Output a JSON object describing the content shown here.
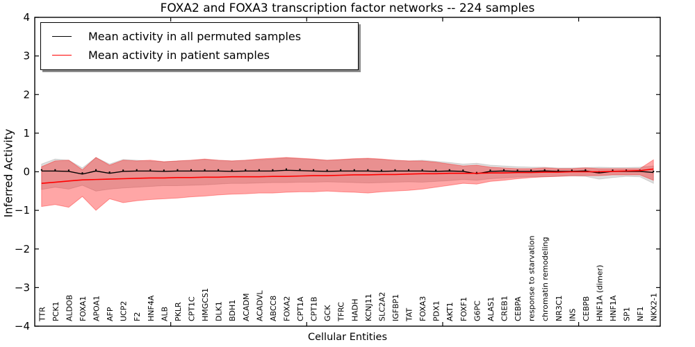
{
  "figure": {
    "title": "FOXA2 and FOXA3 transcription factor networks -- 224 samples",
    "xlabel": "Cellular Entities",
    "ylabel": "Inferred Activity",
    "legend": {
      "entries": [
        {
          "label": "Mean activity in all permuted samples",
          "color": "#000000"
        },
        {
          "label": "Mean activity in patient samples",
          "color": "#ff0000"
        }
      ]
    }
  },
  "chart_data": {
    "type": "line",
    "title": "FOXA2 and FOXA3 transcription factor networks -- 224 samples",
    "xlabel": "Cellular Entities",
    "ylabel": "Inferred Activity",
    "ylim": [
      -4,
      4
    ],
    "yticks": [
      -4,
      -3,
      -2,
      -1,
      0,
      1,
      2,
      3,
      4
    ],
    "xticks_major_positions": [
      10,
      20,
      30,
      40
    ],
    "grid": false,
    "legend_position": "upper left",
    "categories": [
      "TTR",
      "PCK1",
      "ALDOB",
      "FOXA1",
      "APOA1",
      "AFP",
      "UCP2",
      "F2",
      "HNF4A",
      "ALB",
      "PKLR",
      "CPT1C",
      "HMGCS1",
      "DLK1",
      "BDH1",
      "ACADM",
      "ACADVL",
      "ABCC8",
      "FOXA2",
      "CPT1A",
      "CPT1B",
      "GCK",
      "TFRC",
      "HADH",
      "KCNJ11",
      "SLC2A2",
      "IGFBP1",
      "TAT",
      "FOXA3",
      "PDX1",
      "AKT1",
      "FOXF1",
      "G6PC",
      "ALAS1",
      "CREB1",
      "CEBPA",
      "response to starvation",
      "chromatin remodeling",
      "NR3C1",
      "INS",
      "CEBPB",
      "HNF1A (dimer)",
      "HNF1A",
      "SP1",
      "NF1",
      "NKX2-1"
    ],
    "series": [
      {
        "name": "Mean activity in all permuted samples",
        "color": "#000000",
        "line_width": 1.4,
        "markers": true,
        "band_color": "#000000",
        "band_alpha": 0.13,
        "values": [
          0.02,
          0.02,
          0.01,
          -0.06,
          0.02,
          -0.04,
          0.01,
          0.02,
          0.02,
          0.01,
          0.02,
          0.02,
          0.02,
          0.02,
          0.01,
          0.02,
          0.02,
          0.02,
          0.04,
          0.03,
          0.02,
          0.01,
          0.02,
          0.02,
          0.02,
          0.01,
          0.02,
          0.02,
          0.02,
          0.01,
          0.02,
          0.01,
          -0.05,
          0.01,
          0.02,
          0.01,
          0.01,
          0.02,
          0.01,
          0.01,
          0.02,
          -0.03,
          0.01,
          0.01,
          0.01,
          -0.02
        ],
        "band_upper": [
          0.2,
          0.33,
          0.3,
          0.1,
          0.37,
          0.2,
          0.32,
          0.3,
          0.28,
          0.26,
          0.28,
          0.3,
          0.32,
          0.3,
          0.28,
          0.3,
          0.31,
          0.33,
          0.36,
          0.34,
          0.32,
          0.3,
          0.31,
          0.33,
          0.34,
          0.32,
          0.3,
          0.28,
          0.3,
          0.27,
          0.24,
          0.2,
          0.22,
          0.17,
          0.15,
          0.13,
          0.12,
          0.12,
          0.1,
          0.1,
          0.11,
          0.12,
          0.11,
          0.11,
          0.12,
          0.15
        ],
        "band_lower": [
          -0.46,
          -0.4,
          -0.45,
          -0.35,
          -0.5,
          -0.45,
          -0.42,
          -0.4,
          -0.38,
          -0.36,
          -0.36,
          -0.35,
          -0.34,
          -0.32,
          -0.3,
          -0.3,
          -0.29,
          -0.28,
          -0.28,
          -0.27,
          -0.27,
          -0.26,
          -0.27,
          -0.28,
          -0.29,
          -0.28,
          -0.27,
          -0.26,
          -0.27,
          -0.25,
          -0.23,
          -0.2,
          -0.22,
          -0.18,
          -0.16,
          -0.14,
          -0.13,
          -0.13,
          -0.12,
          -0.11,
          -0.12,
          -0.19,
          -0.15,
          -0.12,
          -0.13,
          -0.3
        ]
      },
      {
        "name": "Mean activity in patient samples",
        "color": "#ff0000",
        "line_width": 1.6,
        "markers": false,
        "band_color": "#ff0000",
        "band_alpha": 0.35,
        "values": [
          -0.3,
          -0.27,
          -0.24,
          -0.21,
          -0.2,
          -0.19,
          -0.18,
          -0.17,
          -0.16,
          -0.16,
          -0.15,
          -0.15,
          -0.14,
          -0.14,
          -0.13,
          -0.13,
          -0.13,
          -0.12,
          -0.12,
          -0.11,
          -0.1,
          -0.1,
          -0.09,
          -0.08,
          -0.08,
          -0.07,
          -0.07,
          -0.06,
          -0.05,
          -0.05,
          -0.04,
          -0.04,
          -0.04,
          -0.03,
          -0.03,
          -0.02,
          -0.02,
          -0.01,
          -0.01,
          0.0,
          0.0,
          0.0,
          0.01,
          0.02,
          0.03,
          0.07
        ],
        "band_upper": [
          0.13,
          0.28,
          0.3,
          0.05,
          0.37,
          0.17,
          0.3,
          0.28,
          0.3,
          0.26,
          0.28,
          0.3,
          0.33,
          0.3,
          0.28,
          0.3,
          0.33,
          0.35,
          0.37,
          0.35,
          0.33,
          0.3,
          0.32,
          0.34,
          0.35,
          0.33,
          0.3,
          0.28,
          0.28,
          0.25,
          0.2,
          0.15,
          0.17,
          0.12,
          0.1,
          0.08,
          0.08,
          0.1,
          0.08,
          0.08,
          0.1,
          0.08,
          0.08,
          0.08,
          0.08,
          0.31
        ],
        "band_lower": [
          -0.9,
          -0.85,
          -0.92,
          -0.64,
          -1.0,
          -0.7,
          -0.8,
          -0.75,
          -0.72,
          -0.7,
          -0.68,
          -0.65,
          -0.63,
          -0.6,
          -0.58,
          -0.57,
          -0.55,
          -0.55,
          -0.53,
          -0.52,
          -0.52,
          -0.5,
          -0.52,
          -0.53,
          -0.55,
          -0.52,
          -0.5,
          -0.48,
          -0.45,
          -0.4,
          -0.35,
          -0.3,
          -0.32,
          -0.25,
          -0.22,
          -0.18,
          -0.15,
          -0.13,
          -0.12,
          -0.1,
          -0.1,
          -0.1,
          -0.08,
          -0.08,
          -0.08,
          -0.22
        ]
      }
    ]
  }
}
